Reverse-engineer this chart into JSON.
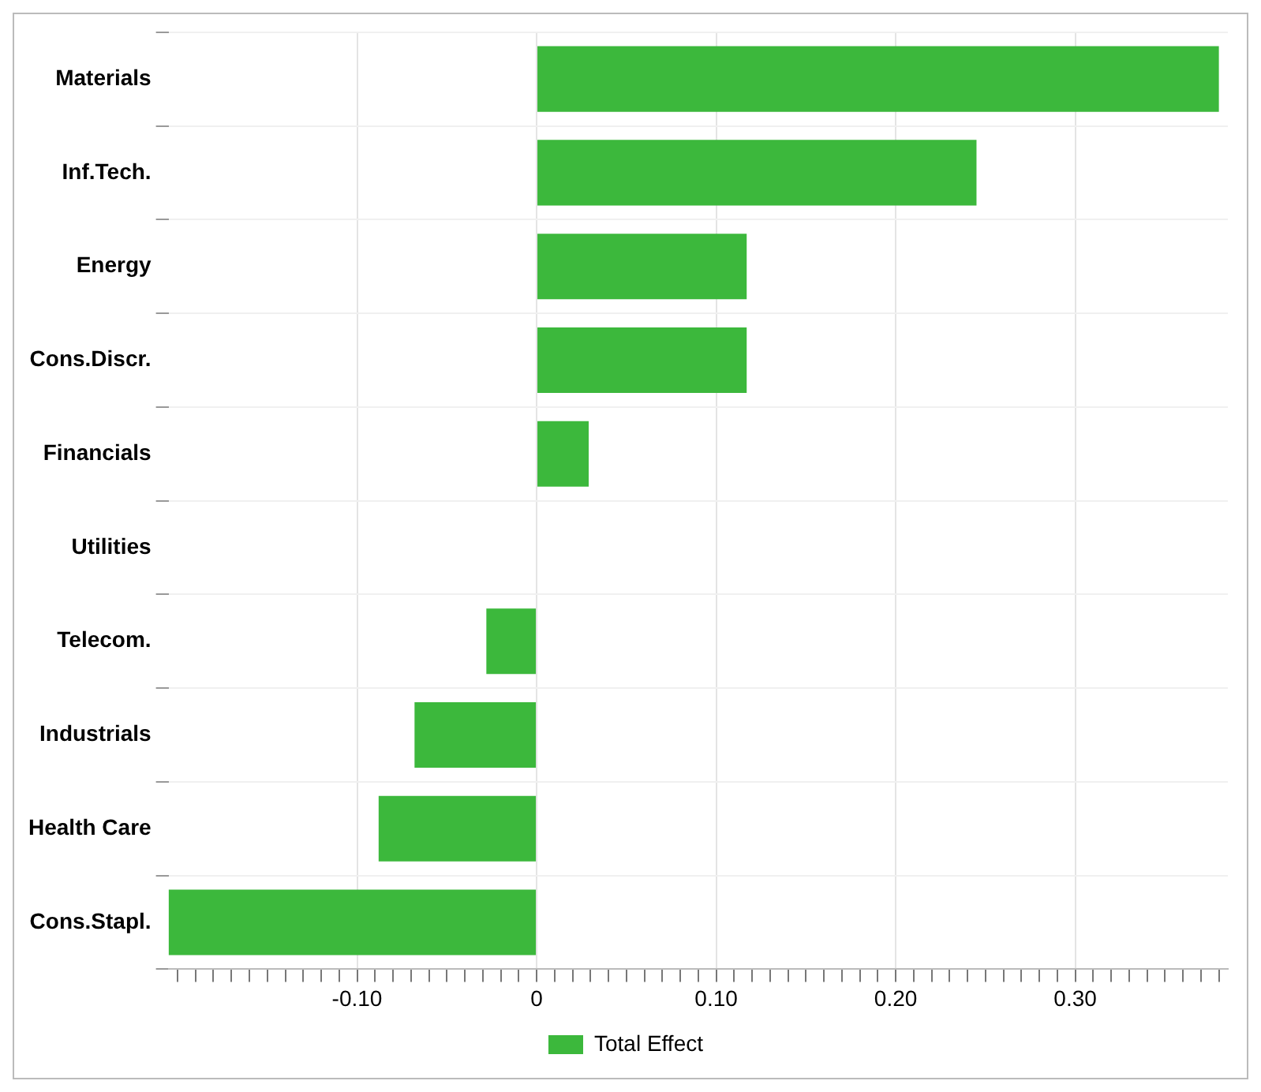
{
  "chart_data": {
    "type": "bar",
    "orientation": "horizontal",
    "categories": [
      "Materials",
      "Inf.Tech.",
      "Energy",
      "Cons.Discr.",
      "Financials",
      "Utilities",
      "Telecom.",
      "Industrials",
      "Health Care",
      "Cons.Stapl."
    ],
    "series": [
      {
        "name": "Total Effect",
        "color": "#3cb83c",
        "values": [
          0.38,
          0.245,
          0.117,
          0.117,
          0.029,
          0,
          -0.028,
          -0.068,
          -0.088,
          -0.205
        ]
      }
    ],
    "xlim": [
      -0.205,
      0.385
    ],
    "xticks": [
      {
        "value": -0.2,
        "label": null
      },
      {
        "value": -0.19,
        "label": null
      },
      {
        "value": -0.18,
        "label": null
      },
      {
        "value": -0.17,
        "label": null
      },
      {
        "value": -0.16,
        "label": null
      },
      {
        "value": -0.15,
        "label": null
      },
      {
        "value": -0.14,
        "label": null
      },
      {
        "value": -0.13,
        "label": null
      },
      {
        "value": -0.12,
        "label": null
      },
      {
        "value": -0.11,
        "label": null
      },
      {
        "value": -0.1,
        "label": "-0.10"
      },
      {
        "value": -0.09,
        "label": null
      },
      {
        "value": -0.08,
        "label": null
      },
      {
        "value": -0.07,
        "label": null
      },
      {
        "value": -0.06,
        "label": null
      },
      {
        "value": -0.05,
        "label": null
      },
      {
        "value": -0.04,
        "label": null
      },
      {
        "value": -0.03,
        "label": null
      },
      {
        "value": -0.02,
        "label": null
      },
      {
        "value": -0.01,
        "label": null
      },
      0,
      {
        "value": 0.01,
        "label": null
      },
      {
        "value": 0.02,
        "label": null
      },
      {
        "value": 0.03,
        "label": null
      },
      {
        "value": 0.04,
        "label": null
      },
      {
        "value": 0.05,
        "label": null
      },
      {
        "value": 0.06,
        "label": null
      },
      {
        "value": 0.07,
        "label": null
      },
      {
        "value": 0.08,
        "label": null
      },
      {
        "value": 0.09,
        "label": null
      },
      {
        "value": 0.1,
        "label": "0.10"
      },
      {
        "value": 0.11,
        "label": null
      },
      {
        "value": 0.12,
        "label": null
      },
      {
        "value": 0.13,
        "label": null
      },
      {
        "value": 0.14,
        "label": null
      },
      {
        "value": 0.15,
        "label": null
      },
      {
        "value": 0.16,
        "label": null
      },
      {
        "value": 0.17,
        "label": null
      },
      {
        "value": 0.18,
        "label": null
      },
      {
        "value": 0.19,
        "label": null
      },
      {
        "value": 0.2,
        "label": "0.20"
      },
      {
        "value": 0.21,
        "label": null
      },
      {
        "value": 0.22,
        "label": null
      },
      {
        "value": 0.23,
        "label": null
      },
      {
        "value": 0.24,
        "label": null
      },
      {
        "value": 0.25,
        "label": null
      },
      {
        "value": 0.26,
        "label": null
      },
      {
        "value": 0.27,
        "label": null
      },
      {
        "value": 0.28,
        "label": null
      },
      {
        "value": 0.29,
        "label": null
      },
      {
        "value": 0.3,
        "label": "0.30"
      },
      {
        "value": 0.31,
        "label": null
      },
      {
        "value": 0.32,
        "label": null
      },
      {
        "value": 0.33,
        "label": null
      },
      {
        "value": 0.34,
        "label": null
      },
      {
        "value": 0.35,
        "label": null
      },
      {
        "value": 0.36,
        "label": null
      },
      {
        "value": 0.37,
        "label": null
      },
      {
        "value": 0.38,
        "label": null
      }
    ],
    "grid": true,
    "legend": "bottom"
  }
}
